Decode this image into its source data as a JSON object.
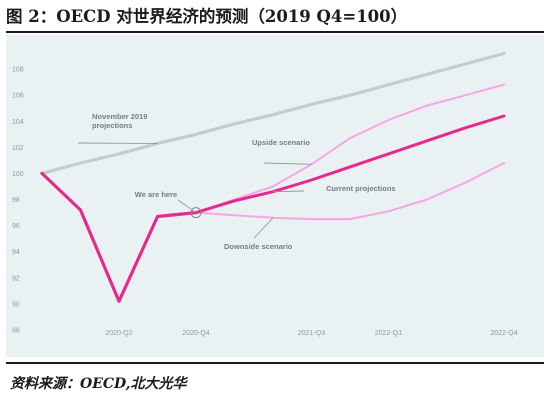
{
  "figure": {
    "title": "图 2：OECD 对世界经济的预测（2019 Q4=100）",
    "source": "资料来源：OECD,北大光华"
  },
  "chart_data": {
    "type": "line",
    "title": "图 2：OECD 对世界经济的预测（2019 Q4=100）",
    "xlabel": "",
    "ylabel": "",
    "x": [
      "2019-Q4",
      "2020-Q1",
      "2020-Q2",
      "2020-Q3",
      "2020-Q4",
      "2021-Q1",
      "2021-Q2",
      "2021-Q3",
      "2021-Q4",
      "2022-Q1",
      "2022-Q2",
      "2022-Q3",
      "2022-Q4"
    ],
    "x_tick_labels": [
      "2020-Q2",
      "2020-Q4",
      "2021-Q3",
      "2022-Q1",
      "2022-Q4"
    ],
    "x_tick_positions": [
      "2020-Q2",
      "2020-Q4",
      "2021-Q3",
      "2022-Q1",
      "2022-Q4"
    ],
    "y_ticks": [
      88,
      90,
      92,
      94,
      96,
      98,
      100,
      102,
      104,
      106,
      108
    ],
    "ylim": [
      87,
      110
    ],
    "grid": false,
    "legend": "none",
    "colors": {
      "background": "#e9f1f3",
      "pre_crisis": "#c4cccf",
      "actual": "#e8288c",
      "central": "#e8288c",
      "scenario": "#f7a6e3",
      "annotation_leader": "#8c9aa0",
      "marker": "#888888"
    },
    "series": [
      {
        "key": "november_2019_projections",
        "values": [
          100,
          100.8,
          101.5,
          102.3,
          103.0,
          103.8,
          104.5,
          105.3,
          106.0,
          106.8,
          107.6,
          108.4,
          109.2
        ],
        "style": "pre_crisis"
      },
      {
        "key": "actual",
        "values": [
          100,
          97.2,
          90.2,
          96.7,
          97.0,
          null,
          null,
          null,
          null,
          null,
          null,
          null,
          null
        ],
        "style": "actual"
      },
      {
        "key": "current_projections",
        "values": [
          null,
          null,
          null,
          null,
          97.0,
          97.9,
          98.6,
          99.5,
          100.5,
          101.5,
          102.5,
          103.5,
          104.4
        ],
        "style": "central"
      },
      {
        "key": "upside_scenario",
        "values": [
          null,
          null,
          null,
          null,
          97.0,
          98.0,
          99.0,
          100.7,
          102.7,
          104.1,
          105.2,
          106.0,
          106.8
        ],
        "style": "scenario"
      },
      {
        "key": "downside_scenario",
        "values": [
          null,
          null,
          null,
          null,
          97.0,
          96.8,
          96.6,
          96.5,
          96.5,
          97.1,
          98.0,
          99.3,
          100.8
        ],
        "style": "scenario"
      }
    ],
    "annotations": [
      {
        "text": "November 2019\nprojections",
        "points_to": [
          "2020-Q3",
          102.3
        ]
      },
      {
        "text": "We are here",
        "points_to": [
          "2020-Q4",
          97.0
        ]
      },
      {
        "text": "Upside scenario",
        "points_to": [
          "2021-Q3",
          100.7
        ]
      },
      {
        "text": "Current projections",
        "points_to": [
          "2021-Q2",
          98.6
        ]
      },
      {
        "text": "Downside scenario",
        "points_to": [
          "2021-Q2",
          96.6
        ]
      }
    ]
  }
}
